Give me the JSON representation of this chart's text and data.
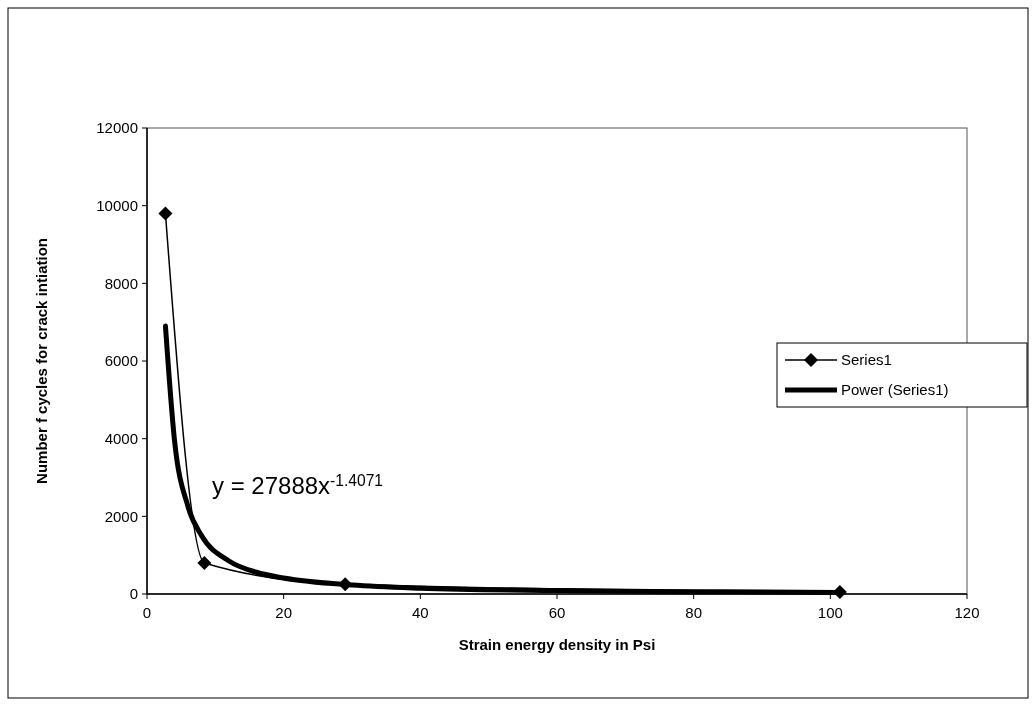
{
  "chart_data": {
    "type": "line",
    "xlabel": "Strain energy density in Psi",
    "ylabel": "Number f cycles for crack intiation",
    "xlim": [
      0,
      120
    ],
    "xticks": [
      0,
      20,
      40,
      60,
      80,
      100,
      120
    ],
    "ylim": [
      0,
      12000
    ],
    "yticks": [
      0,
      2000,
      4000,
      6000,
      8000,
      10000,
      12000
    ],
    "grid": false,
    "legend": "right",
    "series": [
      {
        "name": "Series1",
        "color": "#000000",
        "marker": "diamond",
        "x": [
          2.7,
          8.4,
          29,
          101.4
        ],
        "values": [
          9800,
          800,
          250,
          50
        ]
      },
      {
        "name": "Power (Series1)",
        "color": "#000000",
        "marker": "none",
        "x": [
          2.7,
          4,
          6,
          8,
          12,
          16,
          20,
          30,
          40,
          60,
          80,
          101.4
        ],
        "values": [
          6900,
          4000,
          2250,
          1500,
          850,
          560,
          410,
          230,
          150,
          90,
          60,
          40
        ]
      }
    ],
    "annotations": [
      "y = 27888x$^{-1.4071}$"
    ]
  }
}
